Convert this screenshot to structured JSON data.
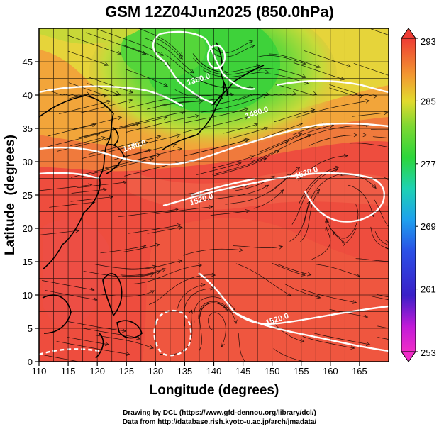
{
  "title": "GSM 12Z04Jun2025 (850.0hPa)",
  "map": {
    "xlabel": "Longitude (degrees)",
    "ylabel": "Latitude  (degrees)",
    "x_ticks": [
      "110",
      "115",
      "120",
      "125",
      "130",
      "135",
      "140",
      "145",
      "150",
      "155",
      "160",
      "165"
    ],
    "y_ticks": [
      "0",
      "5",
      "10",
      "15",
      "20",
      "25",
      "30",
      "35",
      "40",
      "45"
    ],
    "xlim": [
      110,
      170
    ],
    "ylim": [
      0,
      50
    ],
    "contour_labels": [
      {
        "text": "1360.0",
        "lon": 137.5,
        "lat": 42.0
      },
      {
        "text": "1480.0",
        "lon": 147.5,
        "lat": 37.0
      },
      {
        "text": "1480.0",
        "lon": 126.5,
        "lat": 32.0
      },
      {
        "text": "1520.0",
        "lon": 138.0,
        "lat": 24.0
      },
      {
        "text": "1520.0",
        "lon": 156.0,
        "lat": 28.0
      },
      {
        "text": "1520.0",
        "lon": 151.0,
        "lat": 6.0
      }
    ]
  },
  "colorbar": {
    "ticks": [
      "293",
      "285",
      "277",
      "269",
      "261",
      "253"
    ],
    "range": [
      253,
      293
    ]
  },
  "colors": {
    "warm": "#ee4a3c",
    "hot": "#f25a43",
    "orange": "#f39a3a",
    "yellow": "#e8d63c",
    "green": "#55d23c",
    "contour": "#ffffff",
    "coast": "#000000"
  },
  "credits": {
    "line1": "Drawing by DCL (https://www.gfd-dennou.org/library/dcl/)",
    "line2": "Data from http://database.rish.kyoto-u.ac.jp/arch/jmadata/"
  }
}
